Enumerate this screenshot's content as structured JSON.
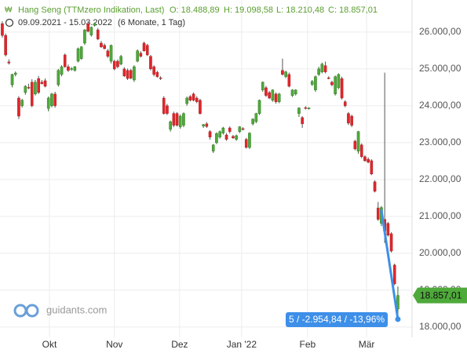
{
  "chart_data": {
    "type": "candlestick",
    "title": "Hang Seng (TTMzero Indikation, Last)",
    "ohlc_labels": [
      "O: 18.488,89",
      "H: 19.098,58",
      "L: 18.210,48",
      "C: 18.857,01"
    ],
    "date_range": "09.09.2021 - 15.03.2022",
    "period": "(6 Monate, 1 Tag)",
    "last_price_label": "18.857,01",
    "brand": "guidants.com",
    "up_color": "#4eaa3a",
    "down_color": "#e0262b",
    "candles": [
      [
        26230,
        26290,
        25850,
        25910
      ],
      [
        25910,
        25960,
        25340,
        25380
      ],
      [
        25190,
        25260,
        25120,
        25160
      ],
      [
        24570,
        24870,
        24500,
        24850
      ],
      [
        24850,
        24930,
        24800,
        24890
      ],
      [
        24210,
        24260,
        23640,
        23720
      ],
      [
        24000,
        24190,
        23950,
        24150
      ],
      [
        24360,
        24560,
        24300,
        24530
      ],
      [
        24500,
        24600,
        24450,
        24480
      ],
      [
        24640,
        24720,
        23960,
        24000
      ],
      [
        24320,
        24700,
        24280,
        24640
      ],
      [
        24740,
        24810,
        24320,
        24360
      ],
      [
        24640,
        24700,
        24580,
        24600
      ],
      [
        24680,
        24740,
        24500,
        24530
      ],
      [
        23930,
        24250,
        23850,
        24210
      ],
      [
        24000,
        24350,
        23960,
        24320
      ],
      [
        24320,
        24380,
        23950,
        24000
      ],
      [
        24570,
        25000,
        24520,
        24960
      ],
      [
        24850,
        25100,
        24800,
        25060
      ],
      [
        25380,
        25420,
        25030,
        25060
      ],
      [
        25060,
        25120,
        24920,
        24960
      ],
      [
        24990,
        25050,
        24950,
        25010
      ],
      [
        24960,
        25080,
        24930,
        25060
      ],
      [
        25210,
        25580,
        25180,
        25550
      ],
      [
        25280,
        25620,
        25250,
        25600
      ],
      [
        25700,
        26080,
        25650,
        26060
      ],
      [
        26230,
        26280,
        25990,
        26020
      ],
      [
        25920,
        26150,
        25880,
        26130
      ],
      [
        26180,
        26260,
        26150,
        26230
      ],
      [
        26060,
        26110,
        25780,
        25810
      ],
      [
        25700,
        25760,
        25570,
        25600
      ],
      [
        25640,
        25690,
        25530,
        25550
      ],
      [
        25490,
        25540,
        25300,
        25340
      ],
      [
        25210,
        25660,
        25150,
        25640
      ],
      [
        25210,
        25250,
        24960,
        25000
      ],
      [
        25210,
        25260,
        25020,
        25060
      ],
      [
        25130,
        25380,
        25100,
        25340
      ],
      [
        25000,
        25050,
        24780,
        24810
      ],
      [
        24960,
        25010,
        24700,
        24740
      ],
      [
        24960,
        25000,
        24720,
        24750
      ],
      [
        24700,
        25100,
        24650,
        25060
      ],
      [
        25210,
        25530,
        25180,
        25490
      ],
      [
        25430,
        25480,
        25310,
        25340
      ],
      [
        25700,
        25740,
        25470,
        25490
      ],
      [
        25640,
        25680,
        25350,
        25380
      ],
      [
        25340,
        25380,
        24960,
        25000
      ],
      [
        25060,
        25100,
        24800,
        24850
      ],
      [
        24910,
        24950,
        24760,
        24790
      ],
      [
        24760,
        24800,
        24700,
        24740
      ],
      [
        24210,
        24260,
        23760,
        23790
      ],
      [
        24000,
        24050,
        23750,
        23790
      ],
      [
        23360,
        23600,
        23300,
        23570
      ],
      [
        23790,
        23840,
        23420,
        23470
      ],
      [
        23790,
        23830,
        23440,
        23470
      ],
      [
        23430,
        23760,
        23380,
        23720
      ],
      [
        23470,
        23820,
        23420,
        23790
      ],
      [
        24060,
        24250,
        24000,
        24210
      ],
      [
        24250,
        24290,
        24120,
        24150
      ],
      [
        24320,
        24360,
        24120,
        24150
      ],
      [
        24210,
        24260,
        24070,
        24110
      ],
      [
        24150,
        24190,
        23760,
        23790
      ],
      [
        23450,
        23510,
        23400,
        23490
      ],
      [
        23510,
        23560,
        23400,
        23440
      ],
      [
        23300,
        23340,
        23080,
        23150
      ],
      [
        22770,
        22960,
        22720,
        22940
      ],
      [
        23000,
        23280,
        22960,
        23250
      ],
      [
        23150,
        23330,
        23110,
        23300
      ],
      [
        23260,
        23430,
        23220,
        23400
      ],
      [
        23210,
        23260,
        23050,
        23090
      ],
      [
        23400,
        23440,
        23250,
        23300
      ],
      [
        23170,
        23210,
        23100,
        23130
      ],
      [
        23090,
        23220,
        23050,
        23190
      ],
      [
        23300,
        23450,
        23260,
        23430
      ],
      [
        23380,
        23420,
        23330,
        23360
      ],
      [
        23090,
        23130,
        22840,
        22870
      ],
      [
        22870,
        23280,
        22830,
        23260
      ],
      [
        23510,
        23660,
        23470,
        23640
      ],
      [
        23570,
        23810,
        23530,
        23790
      ],
      [
        23790,
        24170,
        23750,
        24150
      ],
      [
        24430,
        24660,
        24380,
        24640
      ],
      [
        24490,
        24540,
        24240,
        24280
      ],
      [
        24360,
        24400,
        24180,
        24210
      ],
      [
        24150,
        24450,
        24110,
        24430
      ],
      [
        24320,
        24360,
        24060,
        24110
      ],
      [
        24110,
        24350,
        24070,
        24320
      ],
      [
        24960,
        25280,
        24820,
        24850
      ],
      [
        24790,
        24950,
        24750,
        24920
      ],
      [
        24850,
        24900,
        24500,
        24530
      ],
      [
        24280,
        24450,
        24240,
        24430
      ],
      [
        24320,
        24450,
        24280,
        24430
      ],
      [
        23790,
        23960,
        23700,
        23940
      ],
      [
        23680,
        23720,
        23400,
        23510
      ],
      [
        23950,
        23990,
        23900,
        23930
      ],
      [
        23930,
        23960,
        23900,
        23940
      ],
      [
        24580,
        24700,
        24540,
        24660
      ],
      [
        24430,
        24820,
        24380,
        24790
      ],
      [
        24850,
        25060,
        24810,
        25000
      ],
      [
        24920,
        25170,
        24880,
        25130
      ],
      [
        25090,
        25200,
        24880,
        24920
      ],
      [
        24760,
        24800,
        24720,
        24740
      ],
      [
        24640,
        24680,
        24530,
        24570
      ],
      [
        24320,
        24820,
        24280,
        24790
      ],
      [
        24490,
        24880,
        24450,
        24850
      ],
      [
        24740,
        24790,
        24170,
        24210
      ],
      [
        24110,
        24150,
        23960,
        24000
      ],
      [
        23790,
        23830,
        23480,
        23530
      ],
      [
        23720,
        23760,
        23420,
        23470
      ],
      [
        23040,
        23080,
        22790,
        22830
      ],
      [
        22770,
        23320,
        22700,
        23300
      ],
      [
        22940,
        22980,
        22580,
        22620
      ],
      [
        22620,
        22660,
        22480,
        22510
      ],
      [
        22550,
        22600,
        22440,
        22470
      ],
      [
        22510,
        22550,
        22120,
        22150
      ],
      [
        21940,
        21980,
        21650,
        21680
      ],
      [
        21230,
        21390,
        20880,
        20920
      ],
      [
        20810,
        21280,
        20740,
        21240
      ],
      [
        20920,
        24900,
        20280,
        20600
      ],
      [
        20810,
        20850,
        20450,
        20490
      ],
      [
        20530,
        20570,
        20020,
        20060
      ],
      [
        19680,
        19720,
        19130,
        19170
      ],
      [
        18488.89,
        19098.58,
        18210.48,
        18857.01
      ]
    ],
    "trend": {
      "x": [
        115,
        120
      ],
      "y": [
        21165.32,
        18210.48
      ],
      "color": "#3d8fe8",
      "label": "5 / -2.954,84 / -13,96%"
    },
    "xlim": [
      -0.7,
      124.3
    ],
    "xticks": [
      {
        "value": 14.3,
        "label": "Okt"
      },
      {
        "value": 34,
        "label": "Nov"
      },
      {
        "value": 53.8,
        "label": "Dez"
      },
      {
        "value": 72.6,
        "label": "Jan '22"
      },
      {
        "value": 92.6,
        "label": "Feb"
      },
      {
        "value": 110.5,
        "label": "Mär"
      }
    ],
    "ylim": [
      17720,
      26870
    ],
    "yticks": [
      {
        "value": 18000,
        "label": "18.000,00"
      },
      {
        "value": 19000,
        "label": "19.000,00"
      },
      {
        "value": 20000,
        "label": "20.000,00"
      },
      {
        "value": 21000,
        "label": "21.000,00"
      },
      {
        "value": 22000,
        "label": "22.000,00"
      },
      {
        "value": 23000,
        "label": "23.000,00"
      },
      {
        "value": 24000,
        "label": "24.000,00"
      },
      {
        "value": 25000,
        "label": "25.000,00"
      },
      {
        "value": 26000,
        "label": "26.000,00"
      }
    ],
    "grid": true
  }
}
